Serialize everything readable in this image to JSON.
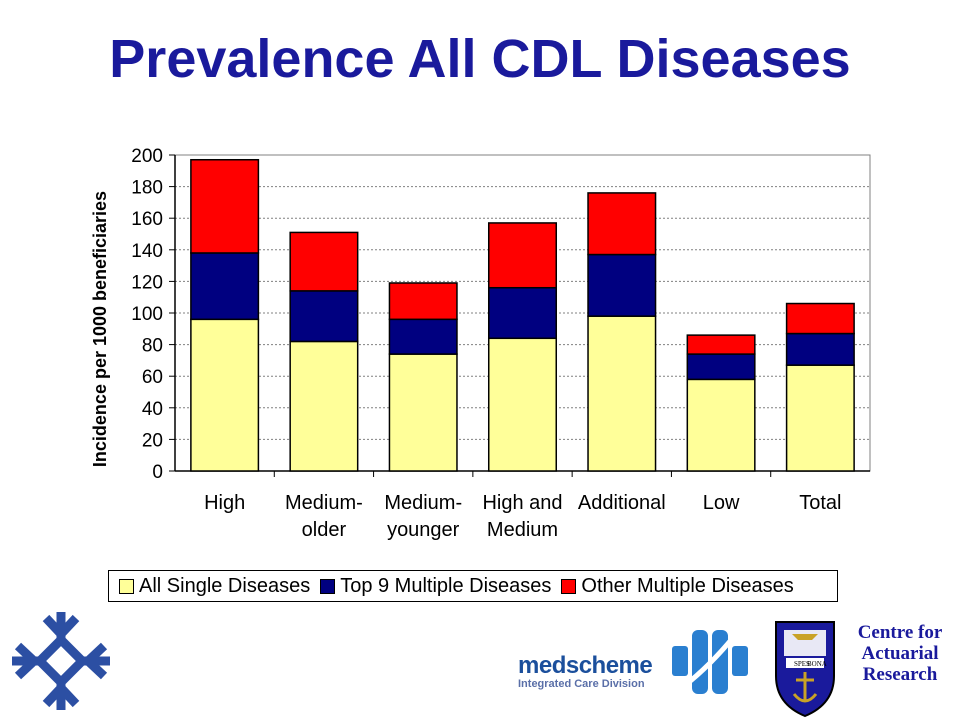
{
  "title": "Prevalence All CDL Diseases",
  "chart_data": {
    "type": "bar",
    "stacked": true,
    "ylabel": "Incidence per 1000 beneficiaries",
    "ylim": [
      0,
      200
    ],
    "yticks": [
      0,
      20,
      40,
      60,
      80,
      100,
      120,
      140,
      160,
      180,
      200
    ],
    "grid": true,
    "legend_position": "bottom",
    "categories": [
      [
        "High"
      ],
      [
        "Medium-",
        "older"
      ],
      [
        "Medium-",
        "younger"
      ],
      [
        "High and",
        "Medium"
      ],
      [
        "Additional"
      ],
      [
        "Low"
      ],
      [
        "Total"
      ]
    ],
    "series": [
      {
        "name": "All Single Diseases",
        "color": "#ffff99",
        "values": [
          96,
          82,
          74,
          84,
          98,
          58,
          67
        ]
      },
      {
        "name": "Top 9 Multiple Diseases",
        "color": "#000080",
        "values": [
          42,
          32,
          22,
          32,
          39,
          16,
          20
        ]
      },
      {
        "name": "Other Multiple Diseases",
        "color": "#ff0000",
        "values": [
          59,
          37,
          23,
          41,
          39,
          12,
          19
        ]
      }
    ]
  },
  "footer": {
    "medscheme_name": "medscheme",
    "medscheme_sub": "Integrated Care Division",
    "crest_motto_left": "SPES",
    "crest_motto_right": "BONA",
    "car_lines": [
      "Centre for",
      "Actuarial",
      "Research"
    ]
  }
}
